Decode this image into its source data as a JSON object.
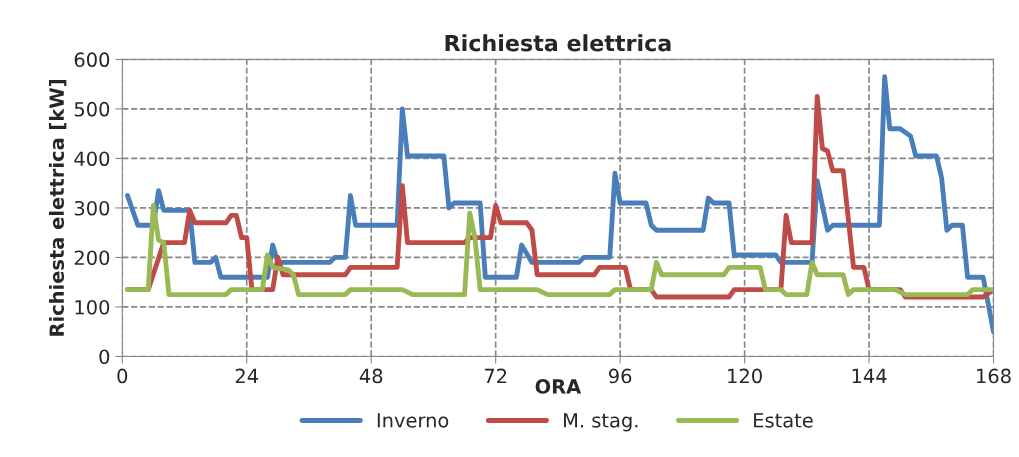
{
  "chart_data": {
    "type": "line",
    "title": "Richiesta elettrica",
    "xlabel": "ORA",
    "ylabel": "Richiesta elettrica [kW]",
    "xlim": [
      0,
      168
    ],
    "xticks": [
      0,
      24,
      48,
      72,
      96,
      120,
      144,
      168
    ],
    "ylim": [
      0,
      600
    ],
    "yticks": [
      0,
      100,
      200,
      300,
      400,
      500,
      600
    ],
    "grid": true,
    "legend": "bottom",
    "marker": "none",
    "line_style": "solid",
    "series": [
      {
        "name": "Inverno",
        "color": "#4a7ebb",
        "x": [
          1,
          3,
          6,
          7,
          8,
          13,
          14,
          17,
          18,
          19,
          28,
          29,
          30,
          40,
          41,
          43,
          44,
          45,
          53,
          54,
          55,
          62,
          63,
          64,
          69,
          70,
          76,
          77,
          79,
          88,
          89,
          94,
          95,
          96,
          101,
          102,
          103,
          112,
          113,
          114,
          117,
          118,
          126,
          127,
          133,
          134,
          136,
          137,
          146,
          147,
          148,
          150,
          152,
          153,
          157,
          158,
          159,
          160,
          162,
          163,
          166,
          168
        ],
        "values": [
          325,
          265,
          265,
          335,
          295,
          295,
          190,
          190,
          200,
          160,
          160,
          225,
          190,
          190,
          200,
          200,
          325,
          265,
          265,
          500,
          405,
          405,
          300,
          310,
          310,
          160,
          160,
          225,
          190,
          190,
          200,
          200,
          370,
          310,
          310,
          265,
          255,
          255,
          320,
          310,
          310,
          205,
          205,
          190,
          190,
          355,
          255,
          265,
          265,
          565,
          460,
          460,
          445,
          405,
          405,
          360,
          255,
          265,
          265,
          160,
          160,
          50
        ]
      },
      {
        "name": "M. stag.",
        "color": "#be4b48",
        "x": [
          1,
          5,
          8,
          12,
          13,
          14,
          20,
          21,
          22,
          23,
          24,
          25,
          29,
          30,
          31,
          43,
          44,
          53,
          54,
          55,
          66,
          67,
          71,
          72,
          73,
          78,
          79,
          80,
          91,
          92,
          97,
          98,
          102,
          103,
          117,
          118,
          127,
          128,
          129,
          133,
          134,
          135,
          136,
          137,
          139,
          141,
          143,
          144,
          150,
          151,
          166,
          168
        ],
        "values": [
          135,
          135,
          230,
          230,
          295,
          270,
          270,
          285,
          285,
          240,
          240,
          135,
          135,
          200,
          165,
          165,
          180,
          180,
          345,
          230,
          230,
          240,
          240,
          305,
          270,
          270,
          255,
          165,
          165,
          180,
          180,
          135,
          135,
          120,
          120,
          135,
          135,
          285,
          230,
          230,
          525,
          420,
          415,
          375,
          375,
          180,
          180,
          135,
          135,
          120,
          120,
          135
        ]
      },
      {
        "name": "Estate",
        "color": "#98b954",
        "x": [
          1,
          5,
          6,
          7,
          8,
          9,
          20,
          21,
          27,
          28,
          29,
          32,
          33,
          34,
          43,
          44,
          54,
          56,
          66,
          67,
          68,
          69,
          80,
          82,
          94,
          95,
          102,
          103,
          104,
          116,
          117,
          123,
          124,
          127,
          128,
          132,
          133,
          134,
          139,
          140,
          141,
          149,
          151,
          163,
          164,
          168
        ],
        "values": [
          135,
          135,
          305,
          235,
          230,
          125,
          125,
          135,
          135,
          205,
          180,
          175,
          165,
          125,
          125,
          135,
          135,
          125,
          125,
          290,
          240,
          135,
          135,
          125,
          125,
          135,
          135,
          190,
          165,
          165,
          180,
          180,
          135,
          135,
          125,
          125,
          190,
          165,
          165,
          125,
          135,
          135,
          125,
          125,
          135,
          135
        ]
      }
    ]
  }
}
